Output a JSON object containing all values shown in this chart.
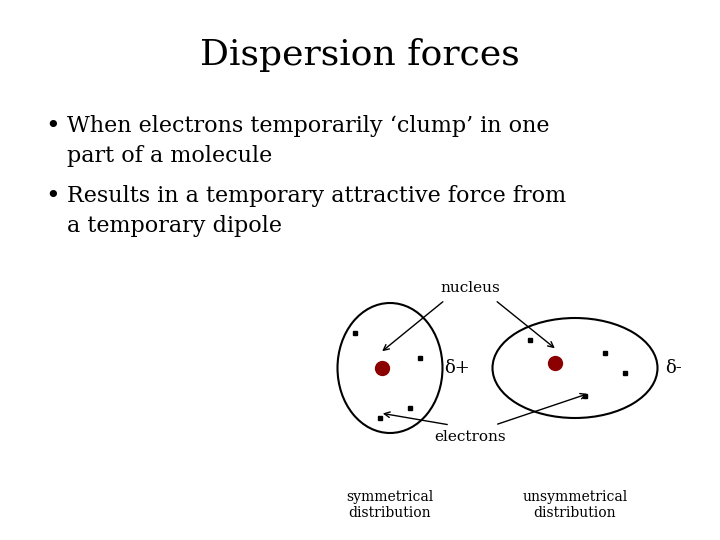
{
  "title": "Dispersion forces",
  "bullet1_line1": "When electrons temporarily ‘clump’ in one",
  "bullet1_line2": "part of a molecule",
  "bullet2_line1": "Results in a temporary attractive force from",
  "bullet2_line2": "a temporary dipole",
  "bg_color": "#ffffff",
  "text_color": "#000000",
  "title_fontsize": 26,
  "body_fontsize": 16,
  "label_nucleus": "nucleus",
  "label_electrons": "electrons",
  "label_delta_plus": "δ+",
  "label_delta_minus": "δ-",
  "label_sym": "symmetrical\ndistribution",
  "label_unsym": "unsymmetrical\ndistribution"
}
